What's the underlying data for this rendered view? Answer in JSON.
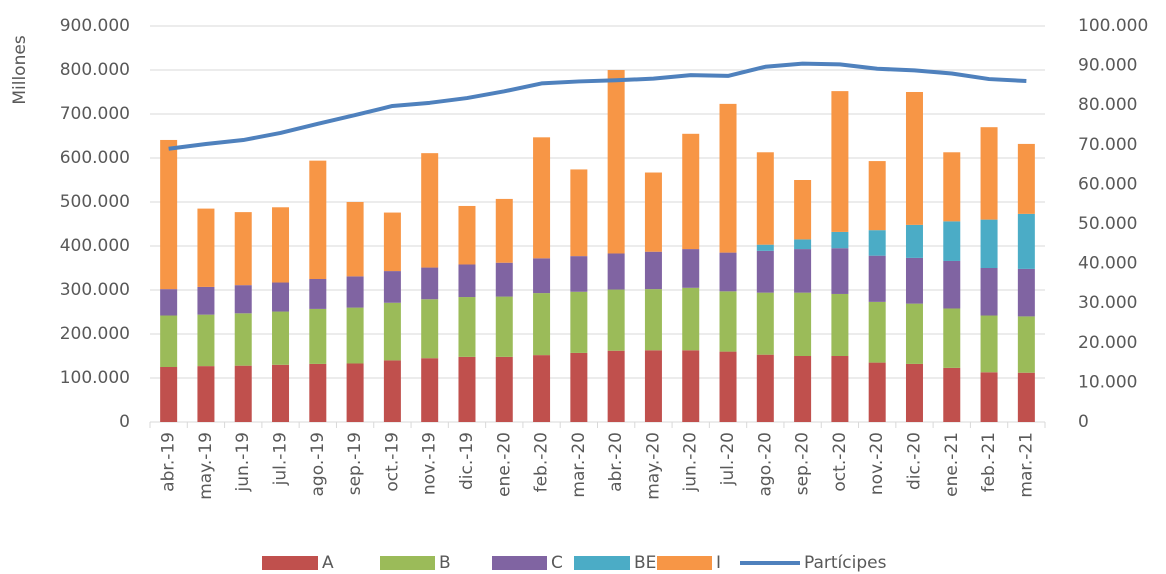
{
  "chart_data": {
    "type": "bar",
    "stacked": true,
    "y_label": "Millones",
    "categories": [
      "abr.-19",
      "may.-19",
      "jun.-19",
      "jul.-19",
      "ago.-19",
      "sep.-19",
      "oct.-19",
      "nov.-19",
      "dic.-19",
      "ene.-20",
      "feb.-20",
      "mar.-20",
      "abr.-20",
      "may.-20",
      "jun.-20",
      "jul.-20",
      "ago.-20",
      "sep.-20",
      "oct.-20",
      "nov.-20",
      "dic.-20",
      "ene.-21",
      "feb.-21",
      "mar.-21"
    ],
    "series": [
      {
        "name": "A",
        "color": "#c0504d",
        "values": [
          125000,
          127000,
          128000,
          130000,
          132000,
          133000,
          140000,
          145000,
          148000,
          148000,
          152000,
          157000,
          162000,
          163000,
          163000,
          160000,
          153000,
          150000,
          150000,
          135000,
          132000,
          123000,
          113000,
          112000
        ]
      },
      {
        "name": "B",
        "color": "#9bbb59",
        "values": [
          117000,
          117000,
          119000,
          121000,
          125000,
          127000,
          131000,
          134000,
          136000,
          137000,
          141000,
          139000,
          139000,
          139000,
          142000,
          137000,
          141000,
          144000,
          141000,
          138000,
          137000,
          135000,
          129000,
          128000
        ]
      },
      {
        "name": "C",
        "color": "#8064a2",
        "values": [
          60000,
          63000,
          64000,
          66000,
          68000,
          71000,
          72000,
          72000,
          74000,
          77000,
          79000,
          81000,
          82000,
          85000,
          88000,
          88000,
          95000,
          99000,
          104000,
          105000,
          104000,
          108000,
          108000,
          108000
        ]
      },
      {
        "name": "BE",
        "color": "#4bacc6",
        "values": [
          0,
          0,
          0,
          0,
          0,
          0,
          0,
          0,
          0,
          0,
          0,
          0,
          0,
          0,
          0,
          0,
          14000,
          22000,
          37000,
          58000,
          75000,
          90000,
          110000,
          125000
        ]
      },
      {
        "name": "I",
        "color": "#f79646",
        "values": [
          339000,
          178000,
          166000,
          171000,
          269000,
          169000,
          133000,
          260000,
          133000,
          145000,
          275000,
          197000,
          417000,
          180000,
          262000,
          338000,
          210000,
          135000,
          320000,
          157000,
          302000,
          157000,
          210000,
          159000
        ]
      },
      {
        "name": "Partícipes",
        "type": "line",
        "axis": "y2",
        "color": "#4f81bd",
        "values": [
          69000,
          70200,
          71200,
          73000,
          75300,
          77500,
          79800,
          80600,
          81800,
          83500,
          85500,
          86000,
          86300,
          86700,
          87600,
          87400,
          89700,
          90500,
          90300,
          89200,
          88800,
          88000,
          86600,
          86100
        ]
      }
    ],
    "ylim": [
      0,
      900000
    ],
    "yticks": [
      0,
      {
        "value": 100000,
        "label": "100.000"
      },
      {
        "value": 200000,
        "label": "200.000"
      },
      {
        "value": 300000,
        "label": "300.000"
      },
      {
        "value": 400000,
        "label": "400.000"
      },
      {
        "value": 500000,
        "label": "500.000"
      },
      {
        "value": 600000,
        "label": "600.000"
      },
      {
        "value": 700000,
        "label": "700.000"
      },
      {
        "value": 800000,
        "label": "800.000"
      },
      {
        "value": 900000,
        "label": "900.000"
      }
    ],
    "y2lim": [
      0,
      100000
    ],
    "y2ticks": [
      0,
      {
        "value": 10000,
        "label": "10.000"
      },
      {
        "value": 20000,
        "label": "20.000"
      },
      {
        "value": 30000,
        "label": "30.000"
      },
      {
        "value": 40000,
        "label": "40.000"
      },
      {
        "value": 50000,
        "label": "50.000"
      },
      {
        "value": 60000,
        "label": "60.000"
      },
      {
        "value": 70000,
        "label": "70.000"
      },
      {
        "value": 80000,
        "label": "80.000"
      },
      {
        "value": 90000,
        "label": "90.000"
      },
      {
        "value": 100000,
        "label": "100.000"
      }
    ],
    "grid": true,
    "legend": "bottom"
  }
}
